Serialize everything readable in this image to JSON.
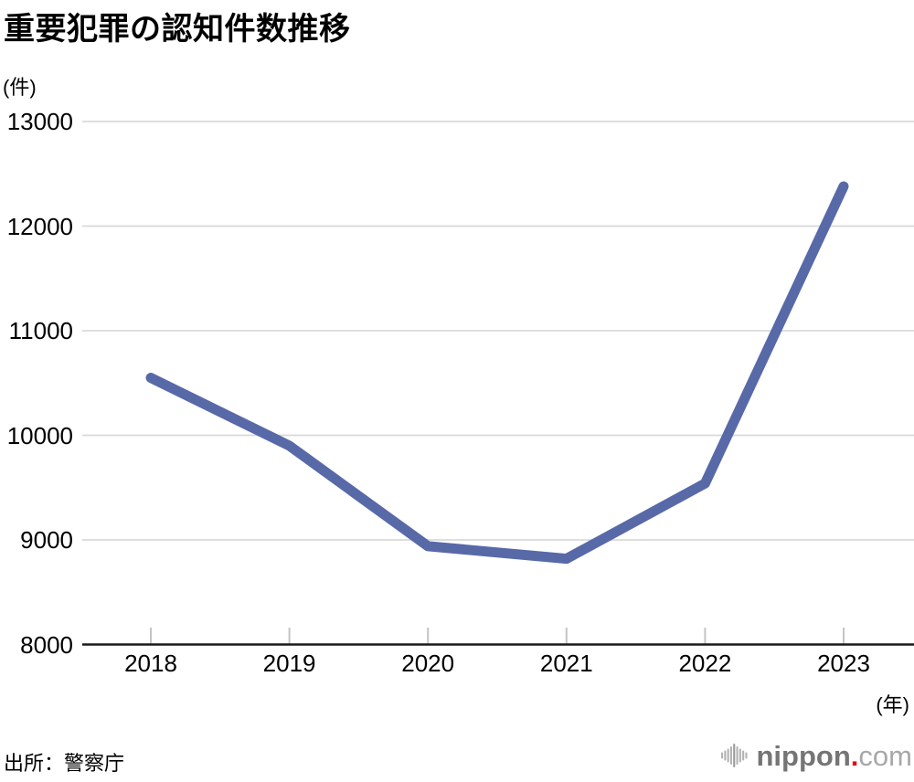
{
  "page": {
    "title": "重要犯罪の認知件数推移",
    "y_unit": "(件)",
    "x_unit": "(年)",
    "source": "出所：警察庁"
  },
  "branding": {
    "logo_name": "nippon",
    "logo_dot": ".",
    "logo_tld": "com",
    "icon": "soundwave-bars-icon",
    "name_color": "#757575",
    "tld_color": "#a8a8a8",
    "dot_color": "#e60012",
    "icon_color": "#b3b3b3"
  },
  "chart_data": {
    "type": "line",
    "title": "重要犯罪の認知件数推移",
    "x": [
      "2018",
      "2019",
      "2020",
      "2021",
      "2022",
      "2023"
    ],
    "values": [
      10550,
      9900,
      8940,
      8820,
      9540,
      12380
    ],
    "xlabel": "(年)",
    "ylabel": "(件)",
    "ylim": [
      8000,
      13000
    ],
    "y_ticks": [
      8000,
      9000,
      10000,
      11000,
      12000,
      13000
    ],
    "grid": true,
    "legend": false,
    "line_color": "#5869a8",
    "line_width": 11,
    "gridline_color": "#d9d9d9",
    "tick_color": "#c4c4c4",
    "axis_color": "#1a1a1a"
  }
}
